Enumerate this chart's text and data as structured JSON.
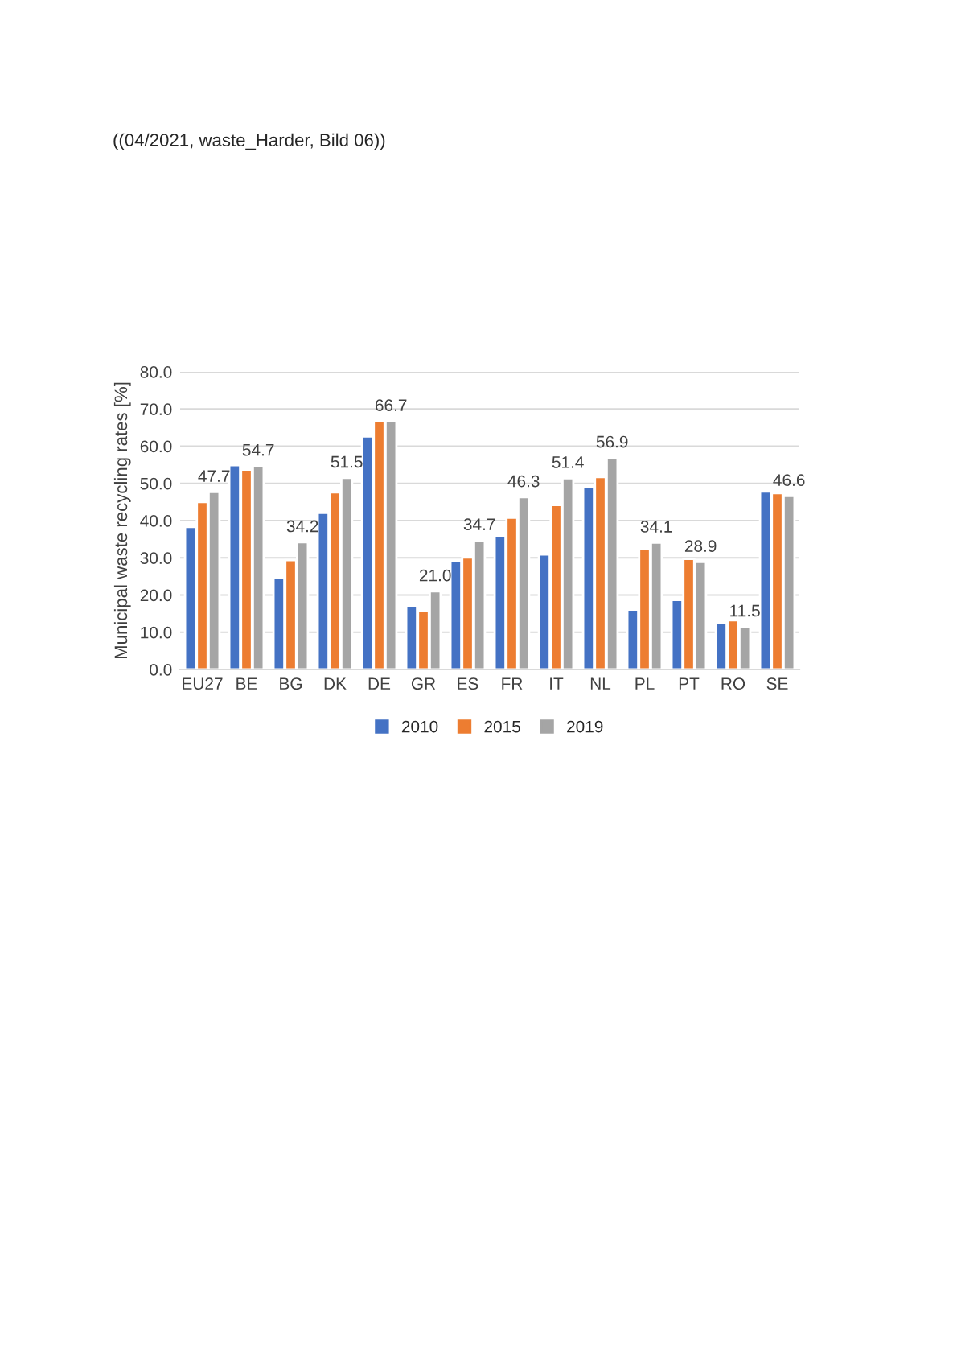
{
  "chart_data": {
    "type": "bar",
    "annotations": [
      "((04/2021, waste_Harder, Bild 06))"
    ],
    "ylabel": "Municipal waste recycling rates [%]",
    "categories": [
      "EU27",
      "BE",
      "BG",
      "DK",
      "DE",
      "GR",
      "ES",
      "FR",
      "IT",
      "NL",
      "PL",
      "PT",
      "RO",
      "SE"
    ],
    "series": [
      {
        "name": "2010",
        "color": "#4472c4",
        "values": [
          38.3,
          54.9,
          24.5,
          42.1,
          62.6,
          17.1,
          29.3,
          36.0,
          30.9,
          49.1,
          16.1,
          18.7,
          12.6,
          47.8
        ]
      },
      {
        "name": "2015",
        "color": "#ed7d31",
        "values": [
          45.0,
          53.7,
          29.4,
          47.6,
          66.7,
          15.8,
          30.1,
          40.8,
          44.2,
          51.7,
          32.5,
          29.7,
          13.2,
          47.4
        ]
      },
      {
        "name": "2019",
        "color": "#a5a5a5",
        "values": [
          47.7,
          54.7,
          34.2,
          51.5,
          66.7,
          21.0,
          34.7,
          46.3,
          51.4,
          56.9,
          34.1,
          28.9,
          11.5,
          46.6
        ],
        "value_labels": [
          "47.7",
          "54.7",
          "34.2",
          "51.5",
          "66.7",
          "21.0",
          "34.7",
          "46.3",
          "51.4",
          "56.9",
          "34.1",
          "28.9",
          "11.5",
          "46.6"
        ]
      }
    ],
    "ylim": [
      0,
      80
    ],
    "yticks": [
      {
        "value": 0,
        "label": "0.0"
      },
      {
        "value": 10,
        "label": "10.0"
      },
      {
        "value": 20,
        "label": "20.0"
      },
      {
        "value": 30,
        "label": "30.0"
      },
      {
        "value": 40,
        "label": "40.0"
      },
      {
        "value": 50,
        "label": "50.0"
      },
      {
        "value": 60,
        "label": "60.0"
      },
      {
        "value": 70,
        "label": "70.0"
      },
      {
        "value": 80,
        "label": "80.0"
      }
    ],
    "grid": "y",
    "legend": "bottom"
  }
}
